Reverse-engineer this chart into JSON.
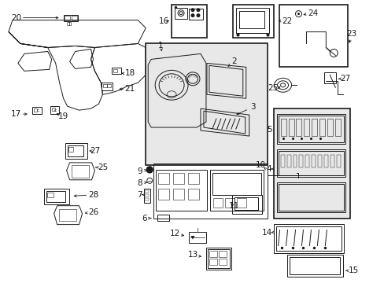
{
  "bg_color": "#ffffff",
  "fig_width": 4.89,
  "fig_height": 3.6,
  "dpi": 100,
  "dark": "#1a1a1a",
  "gray": "#888888",
  "light_gray": "#e8e8e8"
}
